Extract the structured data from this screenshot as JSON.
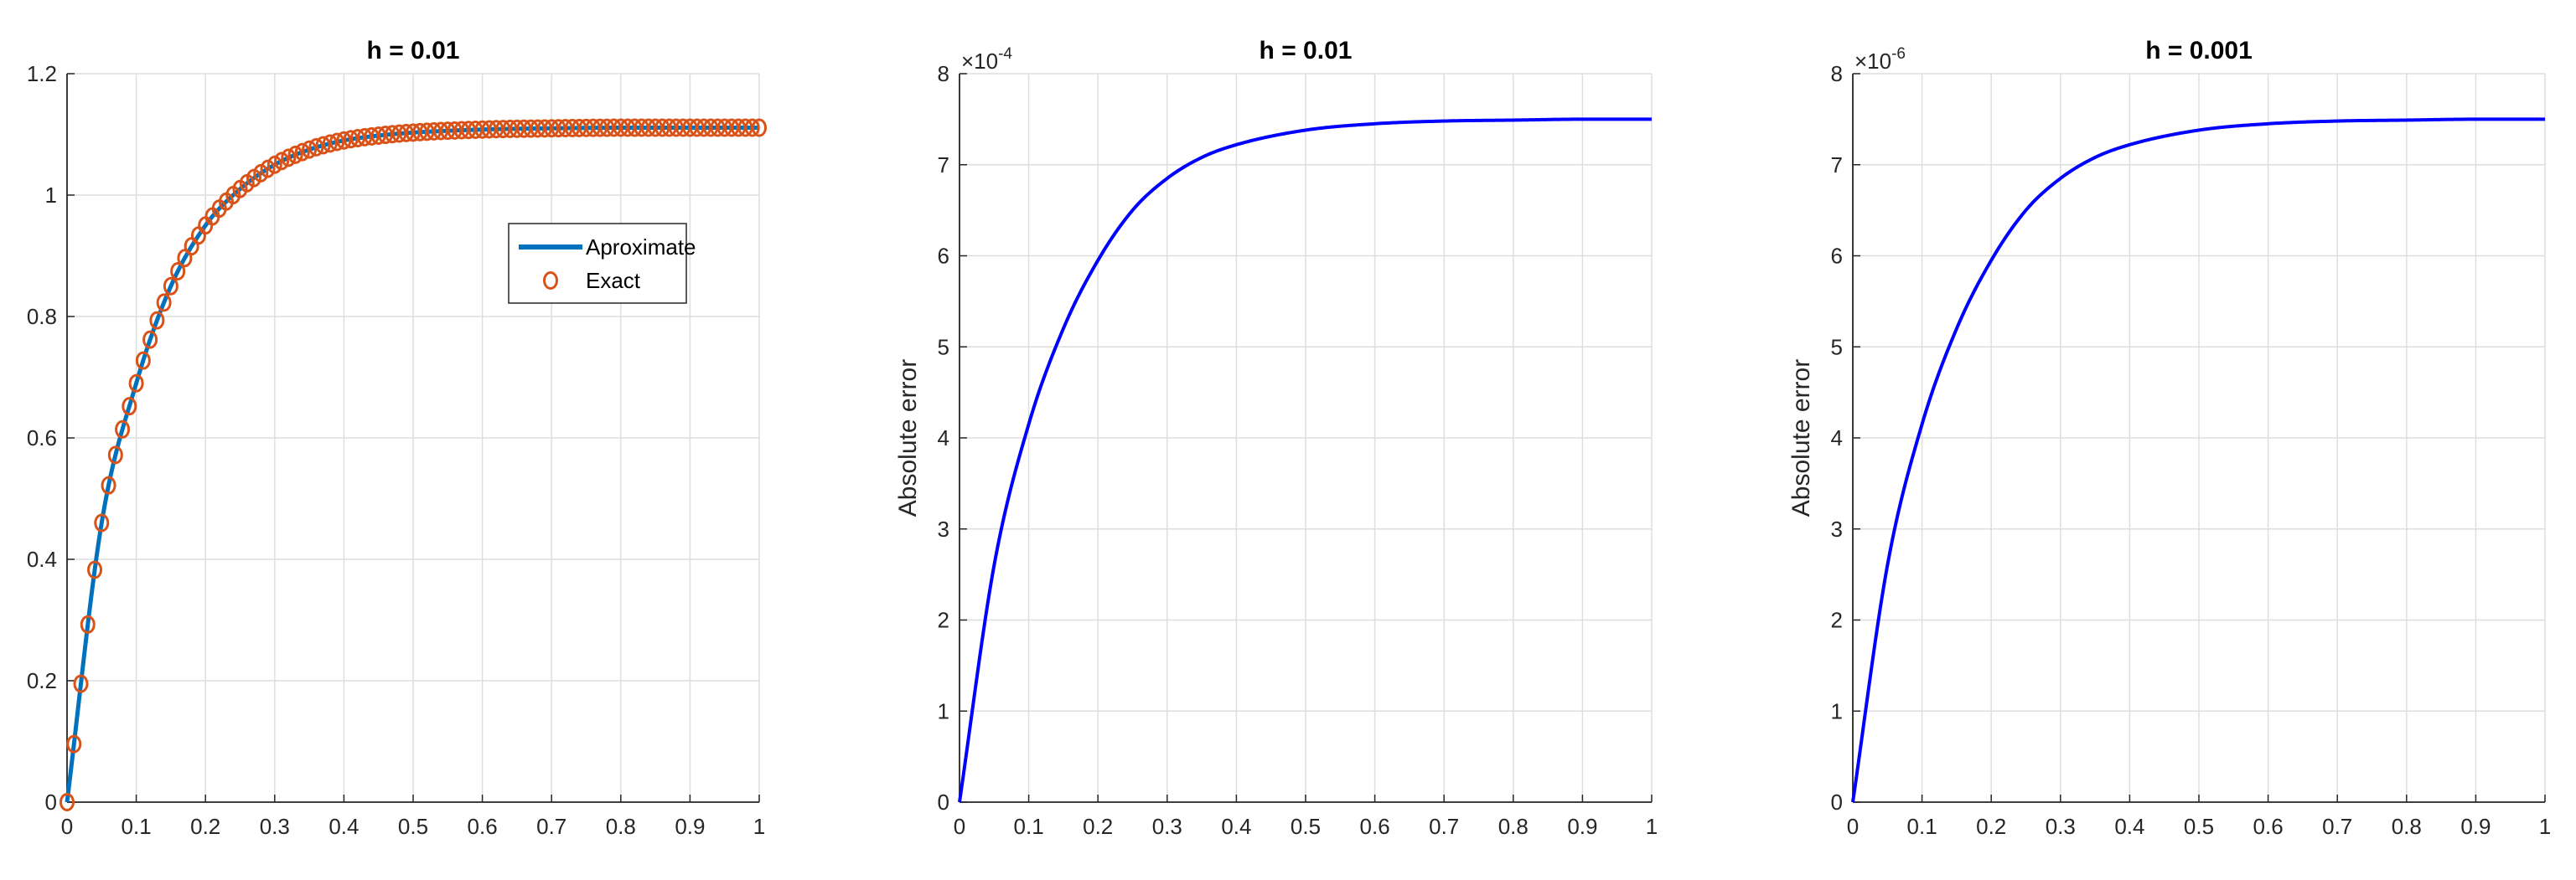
{
  "chart_data": [
    {
      "type": "line",
      "title": "h = 0.01",
      "xlabel": "",
      "ylabel": "",
      "xlim": [
        0,
        1
      ],
      "ylim": [
        0,
        1.2
      ],
      "x_ticks": [
        "0",
        "0.1",
        "0.2",
        "0.3",
        "0.4",
        "0.5",
        "0.6",
        "0.7",
        "0.8",
        "0.9",
        "1"
      ],
      "y_ticks": [
        "0",
        "0.2",
        "0.4",
        "0.6",
        "0.8",
        "1",
        "1.2"
      ],
      "grid": true,
      "legend": {
        "placement": "upper-right",
        "entries": [
          "Aproximate",
          "Exact"
        ]
      },
      "x": [
        0,
        0.05,
        0.1,
        0.15,
        0.2,
        0.25,
        0.3,
        0.35,
        0.4,
        0.45,
        0.5,
        0.6,
        0.7,
        0.8,
        0.9,
        1.0
      ],
      "series": [
        {
          "name": "Aproximate",
          "style": "line",
          "color": "#0072BD",
          "values": [
            0,
            0.46,
            0.69,
            0.85,
            0.95,
            1.01,
            1.05,
            1.075,
            1.09,
            1.098,
            1.103,
            1.108,
            1.11,
            1.111,
            1.111,
            1.111
          ]
        },
        {
          "name": "Exact",
          "style": "markers",
          "color": "#D95319",
          "values": [
            0,
            0.46,
            0.69,
            0.85,
            0.95,
            1.01,
            1.05,
            1.075,
            1.09,
            1.098,
            1.103,
            1.108,
            1.11,
            1.111,
            1.111,
            1.111
          ]
        }
      ]
    },
    {
      "type": "line",
      "title": "h = 0.01",
      "xlabel": "",
      "ylabel": "Absolute error",
      "xlim": [
        0,
        1
      ],
      "ylim": [
        0,
        8
      ],
      "y_exponent": {
        "base": "×10",
        "power": "-4"
      },
      "x_ticks": [
        "0",
        "0.1",
        "0.2",
        "0.3",
        "0.4",
        "0.5",
        "0.6",
        "0.7",
        "0.8",
        "0.9",
        "1"
      ],
      "y_ticks": [
        "0",
        "1",
        "2",
        "3",
        "4",
        "5",
        "6",
        "7",
        "8"
      ],
      "grid": true,
      "x": [
        0,
        0.05,
        0.1,
        0.15,
        0.2,
        0.25,
        0.3,
        0.35,
        0.4,
        0.5,
        0.6,
        0.7,
        0.8,
        0.9,
        1.0
      ],
      "series": [
        {
          "color": "#0000FF",
          "values": [
            0,
            2.6,
            4.15,
            5.2,
            5.95,
            6.5,
            6.85,
            7.08,
            7.22,
            7.38,
            7.45,
            7.48,
            7.49,
            7.5,
            7.5
          ]
        }
      ]
    },
    {
      "type": "line",
      "title": "h = 0.001",
      "xlabel": "",
      "ylabel": "Absolute error",
      "xlim": [
        0,
        1
      ],
      "ylim": [
        0,
        8
      ],
      "y_exponent": {
        "base": "×10",
        "power": "-6"
      },
      "x_ticks": [
        "0",
        "0.1",
        "0.2",
        "0.3",
        "0.4",
        "0.5",
        "0.6",
        "0.7",
        "0.8",
        "0.9",
        "1"
      ],
      "y_ticks": [
        "0",
        "1",
        "2",
        "3",
        "4",
        "5",
        "6",
        "7",
        "8"
      ],
      "grid": true,
      "x": [
        0,
        0.05,
        0.1,
        0.15,
        0.2,
        0.25,
        0.3,
        0.35,
        0.4,
        0.5,
        0.6,
        0.7,
        0.8,
        0.9,
        1.0
      ],
      "series": [
        {
          "color": "#0000FF",
          "values": [
            0,
            2.6,
            4.15,
            5.2,
            5.95,
            6.5,
            6.85,
            7.08,
            7.22,
            7.38,
            7.45,
            7.48,
            7.49,
            7.5,
            7.5
          ]
        }
      ]
    }
  ]
}
